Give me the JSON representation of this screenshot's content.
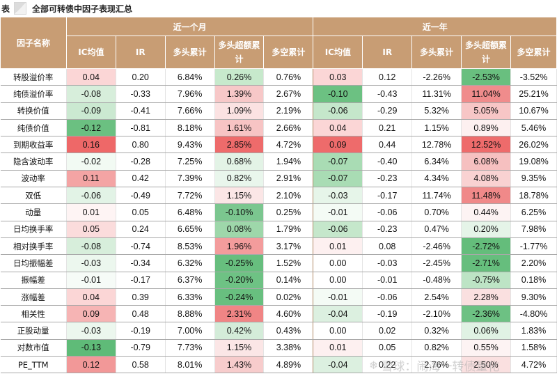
{
  "title": {
    "prefix": "表",
    "text": "全部可转债中因子表现汇总"
  },
  "headers": {
    "factor": "因子名称",
    "group1": "近一个月",
    "group2": "近一年",
    "cols": [
      "IC均值",
      "IR",
      "多头累计",
      "多头超额累计",
      "多空累计",
      "IC均值",
      "IR",
      "多头累计",
      "多头超额累计",
      "多空累计"
    ]
  },
  "colors": {
    "header": "#c89d74",
    "pos_strong": "#ef6b6b",
    "neg_strong": "#5dbb7a"
  },
  "rows": [
    {
      "name": "转股溢价率",
      "v": [
        "0.04",
        "0.20",
        "6.84%",
        "0.26%",
        "0.76%",
        "0.03",
        "0.12",
        "-2.26%",
        "-2.53%",
        "-3.52%"
      ],
      "c": [
        "#fbd6d6",
        "#ffffff",
        "#ffffff",
        "#c7e9cc",
        "#ffffff",
        "#fbd6d6",
        "#ffffff",
        "#ffffff",
        "#69bf7f",
        "#ffffff"
      ]
    },
    {
      "name": "纯债溢价率",
      "v": [
        "-0.08",
        "-0.33",
        "7.96%",
        "1.39%",
        "2.67%",
        "-0.10",
        "-0.43",
        "11.31%",
        "11.04%",
        "25.21%"
      ],
      "c": [
        "#d7eedb",
        "#ffffff",
        "#ffffff",
        "#f7c8c8",
        "#ffffff",
        "#6cc182",
        "#ffffff",
        "#ffffff",
        "#f08c8c",
        "#ffffff"
      ]
    },
    {
      "name": "转换价值",
      "v": [
        "-0.09",
        "-0.41",
        "7.66%",
        "1.09%",
        "2.19%",
        "-0.06",
        "-0.29",
        "5.32%",
        "5.05%",
        "10.67%"
      ],
      "c": [
        "#cbe9d1",
        "#ffffff",
        "#ffffff",
        "#fbe2e2",
        "#ffffff",
        "#c5e7cb",
        "#ffffff",
        "#ffffff",
        "#f7c6c6",
        "#ffffff"
      ]
    },
    {
      "name": "纯债价值",
      "v": [
        "-0.12",
        "-0.81",
        "8.18%",
        "1.61%",
        "2.66%",
        "0.04",
        "0.21",
        "1.15%",
        "0.89%",
        "5.46%"
      ],
      "c": [
        "#6bc081",
        "#ffffff",
        "#ffffff",
        "#f7c4c4",
        "#ffffff",
        "#fbd6d6",
        "#ffffff",
        "#ffffff",
        "#fdf0f0",
        "#ffffff"
      ]
    },
    {
      "name": "到期收益率",
      "v": [
        "0.16",
        "0.80",
        "9.43%",
        "2.85%",
        "4.72%",
        "0.09",
        "0.44",
        "12.78%",
        "12.52%",
        "26.02%"
      ],
      "c": [
        "#ee6868",
        "#ffffff",
        "#ffffff",
        "#ee6b6b",
        "#ffffff",
        "#ee6b6b",
        "#ffffff",
        "#ffffff",
        "#ee6b6b",
        "#ffffff"
      ]
    },
    {
      "name": "隐含波动率",
      "v": [
        "-0.02",
        "-0.28",
        "7.25%",
        "0.68%",
        "1.94%",
        "-0.07",
        "-0.40",
        "6.34%",
        "6.08%",
        "19.08%"
      ],
      "c": [
        "#f2faf3",
        "#ffffff",
        "#ffffff",
        "#e3f3e6",
        "#ffffff",
        "#a9dcb4",
        "#ffffff",
        "#ffffff",
        "#f6c0c0",
        "#ffffff"
      ]
    },
    {
      "name": "波动率",
      "v": [
        "0.11",
        "0.42",
        "7.39%",
        "0.82%",
        "2.91%",
        "-0.07",
        "-0.23",
        "4.34%",
        "4.08%",
        "9.35%"
      ],
      "c": [
        "#f4a4a4",
        "#ffffff",
        "#ffffff",
        "#e9f6ec",
        "#ffffff",
        "#a9dcb4",
        "#ffffff",
        "#ffffff",
        "#f9d2d2",
        "#ffffff"
      ]
    },
    {
      "name": "双低",
      "v": [
        "-0.06",
        "-0.49",
        "7.72%",
        "1.15%",
        "2.10%",
        "-0.03",
        "-0.17",
        "11.74%",
        "11.48%",
        "18.78%"
      ],
      "c": [
        "#e2f3e6",
        "#ffffff",
        "#ffffff",
        "#fbe6e6",
        "#ffffff",
        "#e6f5e9",
        "#ffffff",
        "#ffffff",
        "#f08989",
        "#ffffff"
      ]
    },
    {
      "name": "动量",
      "v": [
        "0.01",
        "0.05",
        "6.48%",
        "-0.10%",
        "0.25%",
        "-0.01",
        "-0.06",
        "0.70%",
        "0.44%",
        "6.25%"
      ],
      "c": [
        "#fef4f4",
        "#ffffff",
        "#ffffff",
        "#7bc68f",
        "#ffffff",
        "#f4fbf5",
        "#ffffff",
        "#ffffff",
        "#fdf3f3",
        "#ffffff"
      ]
    },
    {
      "name": "日均换手率",
      "v": [
        "0.05",
        "0.24",
        "6.65%",
        "0.08%",
        "1.79%",
        "-0.06",
        "-0.23",
        "0.47%",
        "0.20%",
        "7.98%"
      ],
      "c": [
        "#fbdcdc",
        "#ffffff",
        "#ffffff",
        "#9ed7aa",
        "#ffffff",
        "#c5e7cb",
        "#ffffff",
        "#ffffff",
        "#e5f4e8",
        "#ffffff"
      ]
    },
    {
      "name": "相对换手率",
      "v": [
        "-0.08",
        "-0.74",
        "8.53%",
        "1.96%",
        "3.17%",
        "0.01",
        "0.08",
        "-2.46%",
        "-2.72%",
        "-1.77%"
      ],
      "c": [
        "#d7eedb",
        "#ffffff",
        "#ffffff",
        "#f39c9c",
        "#ffffff",
        "#fdf0f0",
        "#ffffff",
        "#ffffff",
        "#64bd7b",
        "#ffffff"
      ]
    },
    {
      "name": "日均振幅差",
      "v": [
        "-0.03",
        "-0.34",
        "6.32%",
        "-0.25%",
        "1.52%",
        "0.00",
        "-0.03",
        "-2.45%",
        "-2.71%",
        "2.20%"
      ],
      "c": [
        "#ecf7ee",
        "#ffffff",
        "#ffffff",
        "#67be7e",
        "#ffffff",
        "#ffffff",
        "#ffffff",
        "#ffffff",
        "#66be7d",
        "#ffffff"
      ]
    },
    {
      "name": "振幅差",
      "v": [
        "-0.01",
        "-0.17",
        "6.37%",
        "-0.20%",
        "0.14%",
        "0.00",
        "-0.01",
        "-0.48%",
        "-0.75%",
        "0.18%"
      ],
      "c": [
        "#f6fbf7",
        "#ffffff",
        "#ffffff",
        "#6ec284",
        "#ffffff",
        "#ffffff",
        "#ffffff",
        "#ffffff",
        "#bde4c5",
        "#ffffff"
      ]
    },
    {
      "name": "涨幅差",
      "v": [
        "0.04",
        "0.39",
        "6.33%",
        "-0.24%",
        "0.02%",
        "-0.01",
        "-0.06",
        "2.54%",
        "2.28%",
        "9.30%"
      ],
      "c": [
        "#fbd6d6",
        "#ffffff",
        "#ffffff",
        "#68bf7f",
        "#ffffff",
        "#f4fbf5",
        "#ffffff",
        "#ffffff",
        "#fae0e0",
        "#ffffff"
      ]
    },
    {
      "name": "相关性",
      "v": [
        "0.09",
        "0.48",
        "8.88%",
        "2.31%",
        "4.60%",
        "-0.04",
        "-0.19",
        "-2.10%",
        "-2.36%",
        "-4.80%"
      ],
      "c": [
        "#f6b4b4",
        "#ffffff",
        "#ffffff",
        "#f08585",
        "#ffffff",
        "#dcf0e0",
        "#ffffff",
        "#ffffff",
        "#6dc183",
        "#ffffff"
      ]
    },
    {
      "name": "正股动量",
      "v": [
        "-0.03",
        "-0.19",
        "7.00%",
        "0.42%",
        "0.43%",
        "0.00",
        "0.02",
        "0.32%",
        "0.06%",
        "1.83%"
      ],
      "c": [
        "#ecf7ee",
        "#ffffff",
        "#ffffff",
        "#d4ecd9",
        "#ffffff",
        "#ffffff",
        "#ffffff",
        "#ffffff",
        "#e0f2e4",
        "#ffffff"
      ]
    },
    {
      "name": "对数市值",
      "v": [
        "-0.13",
        "-0.79",
        "7.73%",
        "1.15%",
        "3.38%",
        "0.01",
        "0.05",
        "0.82%",
        "0.55%",
        "1.58%"
      ],
      "c": [
        "#5fbb78",
        "#ffffff",
        "#ffffff",
        "#fbe6e6",
        "#ffffff",
        "#fdf0f0",
        "#ffffff",
        "#ffffff",
        "#fdf3f3",
        "#ffffff"
      ]
    },
    {
      "name": "PE_TTM",
      "v": [
        "0.12",
        "0.58",
        "8.01%",
        "1.43%",
        "4.89%",
        "-0.04",
        "0.22",
        "2.76%",
        "2.50%",
        "4.72%"
      ],
      "c": [
        "#f29898",
        "#ffffff",
        "#ffffff",
        "#f7cccc",
        "#ffffff",
        "#dcf0e0",
        "#ffffff",
        "#ffffff",
        "#fae0e0",
        "#ffffff"
      ]
    }
  ],
  "watermark": "雪球：闹海一转债量化"
}
